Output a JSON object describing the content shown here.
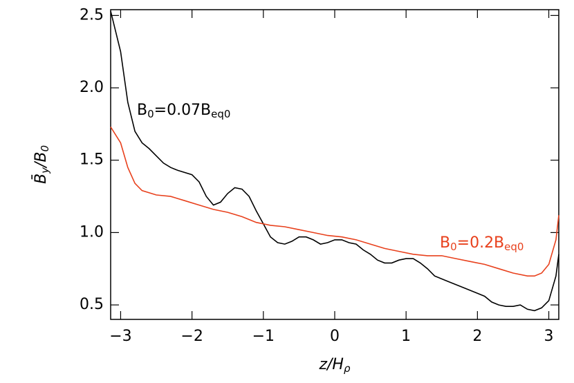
{
  "chart_data": {
    "type": "line",
    "x_label": [
      "z/H",
      "ρ"
    ],
    "y_label": [
      "B̄",
      "y",
      "/B",
      "0"
    ],
    "xlim": [
      -3.14,
      3.14
    ],
    "ylim": [
      0.4,
      2.54
    ],
    "xticks": [
      {
        "value": -3,
        "label": "−3"
      },
      {
        "value": -2,
        "label": "−2"
      },
      {
        "value": -1,
        "label": "−1"
      },
      0,
      1,
      2,
      3
    ],
    "yticks": [
      0.5,
      {
        "value": 1,
        "label": "1.0"
      },
      1.5,
      {
        "value": 2,
        "label": "2.0"
      },
      2.5
    ],
    "series": [
      {
        "label": [
          "B",
          "0",
          "=0.07B",
          "eq0"
        ],
        "color": "#000000",
        "x": [
          -3.14,
          -3.0,
          -2.9,
          -2.8,
          -2.7,
          -2.6,
          -2.5,
          -2.4,
          -2.3,
          -2.2,
          -2.0,
          -1.9,
          -1.8,
          -1.7,
          -1.6,
          -1.5,
          -1.4,
          -1.3,
          -1.2,
          -1.1,
          -1.0,
          -0.9,
          -0.8,
          -0.7,
          -0.6,
          -0.5,
          -0.4,
          -0.3,
          -0.2,
          -0.1,
          0.0,
          0.1,
          0.2,
          0.3,
          0.4,
          0.5,
          0.6,
          0.7,
          0.8,
          0.9,
          1.0,
          1.1,
          1.2,
          1.3,
          1.4,
          1.6,
          1.8,
          2.0,
          2.1,
          2.2,
          2.3,
          2.4,
          2.5,
          2.6,
          2.7,
          2.8,
          2.9,
          3.0,
          3.1,
          3.14
        ],
        "values": [
          2.53,
          2.25,
          1.9,
          1.7,
          1.62,
          1.58,
          1.53,
          1.48,
          1.45,
          1.43,
          1.4,
          1.35,
          1.25,
          1.19,
          1.21,
          1.27,
          1.31,
          1.3,
          1.25,
          1.15,
          1.06,
          0.97,
          0.93,
          0.92,
          0.94,
          0.97,
          0.97,
          0.95,
          0.92,
          0.93,
          0.95,
          0.95,
          0.93,
          0.92,
          0.88,
          0.85,
          0.81,
          0.79,
          0.79,
          0.81,
          0.82,
          0.82,
          0.79,
          0.75,
          0.7,
          0.66,
          0.62,
          0.58,
          0.56,
          0.52,
          0.5,
          0.49,
          0.49,
          0.5,
          0.47,
          0.46,
          0.48,
          0.53,
          0.7,
          0.85
        ]
      },
      {
        "label": [
          "B",
          "0",
          "=0.2B",
          "eq0"
        ],
        "color": "#e8401c",
        "x": [
          -3.14,
          -3.0,
          -2.9,
          -2.8,
          -2.7,
          -2.5,
          -2.3,
          -2.1,
          -1.9,
          -1.7,
          -1.5,
          -1.3,
          -1.1,
          -0.9,
          -0.7,
          -0.5,
          -0.3,
          -0.1,
          0.1,
          0.3,
          0.5,
          0.7,
          0.9,
          1.1,
          1.3,
          1.5,
          1.7,
          1.9,
          2.1,
          2.3,
          2.5,
          2.7,
          2.8,
          2.9,
          3.0,
          3.1,
          3.14
        ],
        "values": [
          1.73,
          1.62,
          1.45,
          1.34,
          1.29,
          1.26,
          1.25,
          1.22,
          1.19,
          1.16,
          1.14,
          1.11,
          1.07,
          1.05,
          1.04,
          1.02,
          1.0,
          0.98,
          0.97,
          0.95,
          0.92,
          0.89,
          0.87,
          0.85,
          0.84,
          0.84,
          0.82,
          0.8,
          0.78,
          0.75,
          0.72,
          0.7,
          0.7,
          0.72,
          0.78,
          0.95,
          1.12
        ]
      }
    ]
  }
}
